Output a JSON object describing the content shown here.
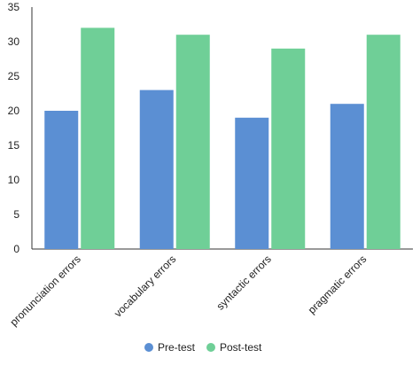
{
  "chart_data": {
    "type": "bar",
    "categories": [
      "pronunciation errors",
      "vocabulary errors",
      "syntactic  errors",
      "pragmatic errors"
    ],
    "series": [
      {
        "name": "Pre-test",
        "values": [
          20,
          23,
          19,
          21
        ],
        "color": "#5b8fd3"
      },
      {
        "name": "Post-test",
        "values": [
          32,
          31,
          29,
          31
        ],
        "color": "#6fcf97"
      }
    ],
    "ylim": [
      0,
      35
    ],
    "yticks": [
      0,
      5,
      10,
      15,
      20,
      25,
      30,
      35
    ],
    "grid": false,
    "legend_position": "bottom-center"
  }
}
